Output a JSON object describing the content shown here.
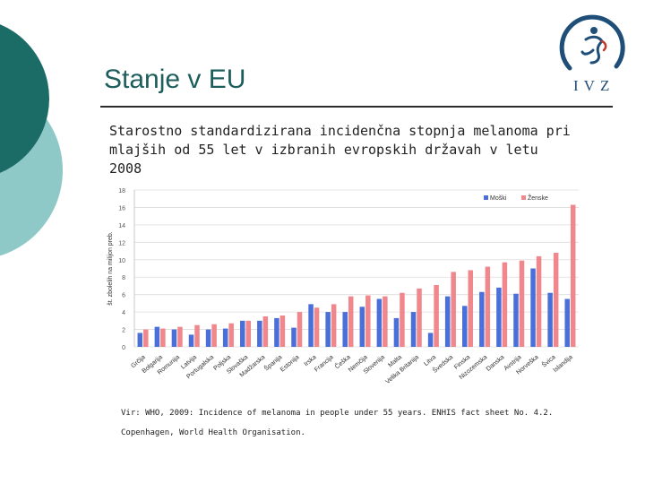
{
  "slide": {
    "title": "Stanje v EU",
    "subtitle_line1": "Starostno standardizirana incidenčna stopnja melanoma pri",
    "subtitle_line2": "mlajših od 55 let v izbranih evropskih državah v letu 2008",
    "source_line1": "Vir: WHO, 2009: Incidence of melanoma in people under 55 years. ENHIS fact sheet No. 4.2.",
    "source_line2": "Copenhagen, World Health Organisation."
  },
  "logo": {
    "text": "IVZ",
    "icon": "ivz-logo-icon"
  },
  "colors": {
    "teal_dark": "#1b6b66",
    "teal_light": "#8fc9c7",
    "male": "#4a6fd9",
    "female": "#f0878c",
    "title": "#1d5e5c",
    "logo": "#1f4e79"
  },
  "chart_data": {
    "type": "bar",
    "title": "",
    "xlabel": "",
    "ylabel": "št. zbolelih na milijon preb.",
    "ylim": [
      0,
      18
    ],
    "yticks": [
      0,
      2,
      4,
      6,
      8,
      10,
      12,
      14,
      16,
      18
    ],
    "categories": [
      "Grčija",
      "Bolgarija",
      "Romunija",
      "Latvija",
      "Portugalska",
      "Poljska",
      "Slovaška",
      "Madžarska",
      "Španija",
      "Estonija",
      "Irska",
      "Francija",
      "Češka",
      "Nemčija",
      "Slovenija",
      "Malta",
      "Velika Britanija",
      "Litva",
      "Švedska",
      "Finska",
      "Nizozemska",
      "Danska",
      "Avstrija",
      "Norveška",
      "Švica",
      "Islandija"
    ],
    "legend_position": "top-right",
    "series": [
      {
        "name": "Moški",
        "values": [
          1.6,
          2.3,
          2.0,
          1.4,
          2.0,
          2.1,
          3.0,
          3.0,
          3.3,
          2.2,
          4.9,
          4.0,
          4.0,
          4.6,
          5.5,
          3.3,
          4.0,
          1.6,
          5.8,
          4.7,
          6.3,
          6.8,
          6.1,
          9.0,
          6.2,
          5.5
        ]
      },
      {
        "name": "Ženske",
        "values": [
          2.0,
          2.1,
          2.3,
          2.5,
          2.6,
          2.7,
          3.0,
          3.5,
          3.6,
          4.0,
          4.5,
          4.9,
          5.8,
          5.9,
          5.8,
          6.2,
          6.7,
          7.1,
          8.6,
          8.8,
          9.2,
          9.7,
          9.9,
          10.4,
          10.8,
          16.3
        ]
      }
    ]
  }
}
